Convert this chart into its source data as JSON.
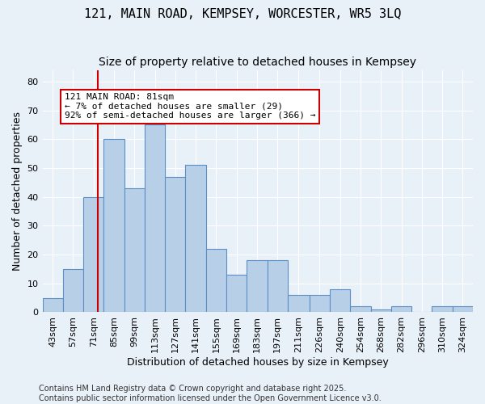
{
  "title": "121, MAIN ROAD, KEMPSEY, WORCESTER, WR5 3LQ",
  "subtitle": "Size of property relative to detached houses in Kempsey",
  "xlabel": "Distribution of detached houses by size in Kempsey",
  "ylabel": "Number of detached properties",
  "bar_values": [
    5,
    15,
    40,
    60,
    43,
    65,
    47,
    51,
    22,
    13,
    18,
    18,
    6,
    6,
    8,
    2,
    1,
    2,
    0,
    2,
    2
  ],
  "bin_labels": [
    "43sqm",
    "57sqm",
    "71sqm",
    "85sqm",
    "99sqm",
    "113sqm",
    "127sqm",
    "141sqm",
    "155sqm",
    "169sqm",
    "183sqm",
    "197sqm",
    "211sqm",
    "226sqm",
    "240sqm",
    "254sqm",
    "268sqm",
    "282sqm",
    "296sqm",
    "310sqm",
    "324sqm"
  ],
  "bin_edges": [
    43,
    57,
    71,
    85,
    99,
    113,
    127,
    141,
    155,
    169,
    183,
    197,
    211,
    226,
    240,
    254,
    268,
    282,
    296,
    310,
    324,
    338
  ],
  "bar_color": "#b8cfe8",
  "bar_edge_color": "#5b8ec4",
  "property_value": 81,
  "vline_color": "#cc0000",
  "annotation_text": "121 MAIN ROAD: 81sqm\n← 7% of detached houses are smaller (29)\n92% of semi-detached houses are larger (366) →",
  "annotation_box_color": "#ffffff",
  "annotation_box_edge_color": "#cc0000",
  "ylim": [
    0,
    84
  ],
  "yticks": [
    0,
    10,
    20,
    30,
    40,
    50,
    60,
    70,
    80
  ],
  "bg_color": "#e8f0f8",
  "plot_bg_color": "#e8f0f8",
  "footer": "Contains HM Land Registry data © Crown copyright and database right 2025.\nContains public sector information licensed under the Open Government Licence v3.0.",
  "title_fontsize": 11,
  "subtitle_fontsize": 10,
  "axis_label_fontsize": 9,
  "tick_fontsize": 8,
  "annotation_fontsize": 8,
  "footer_fontsize": 7
}
